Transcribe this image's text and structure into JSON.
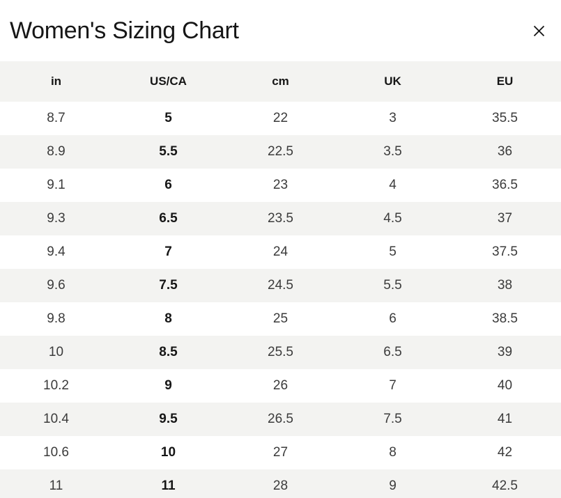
{
  "header": {
    "title": "Women's Sizing Chart"
  },
  "icons": {
    "close": "✕"
  },
  "colors": {
    "bg": "#ffffff",
    "row_alt_bg": "#f3f3f1",
    "text": "#3b3b3b",
    "strong_text": "#161616"
  },
  "table": {
    "columns": [
      "in",
      "US/CA",
      "cm",
      "UK",
      "EU"
    ],
    "bold_column_index": 1,
    "rows": [
      [
        "8.7",
        "5",
        "22",
        "3",
        "35.5"
      ],
      [
        "8.9",
        "5.5",
        "22.5",
        "3.5",
        "36"
      ],
      [
        "9.1",
        "6",
        "23",
        "4",
        "36.5"
      ],
      [
        "9.3",
        "6.5",
        "23.5",
        "4.5",
        "37"
      ],
      [
        "9.4",
        "7",
        "24",
        "5",
        "37.5"
      ],
      [
        "9.6",
        "7.5",
        "24.5",
        "5.5",
        "38"
      ],
      [
        "9.8",
        "8",
        "25",
        "6",
        "38.5"
      ],
      [
        "10",
        "8.5",
        "25.5",
        "6.5",
        "39"
      ],
      [
        "10.2",
        "9",
        "26",
        "7",
        "40"
      ],
      [
        "10.4",
        "9.5",
        "26.5",
        "7.5",
        "41"
      ],
      [
        "10.6",
        "10",
        "27",
        "8",
        "42"
      ],
      [
        "11",
        "11",
        "28",
        "9",
        "42.5"
      ]
    ]
  }
}
